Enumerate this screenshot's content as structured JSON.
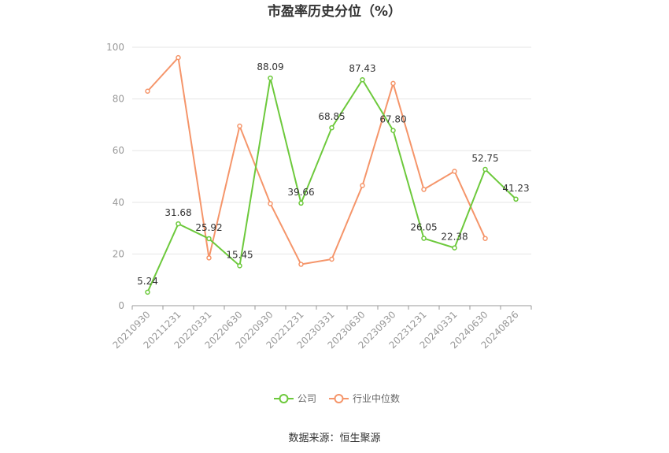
{
  "chart_data": {
    "type": "line",
    "title": "市盈率历史分位（%）",
    "categories": [
      "20210930",
      "20211231",
      "20220331",
      "20220630",
      "20220930",
      "20221231",
      "20230331",
      "20230630",
      "20230930",
      "20231231",
      "20240331",
      "20240630",
      "20240826"
    ],
    "ylim": [
      0,
      100
    ],
    "yticks": [
      0,
      20,
      40,
      60,
      80,
      100
    ],
    "grid": true,
    "legend_position": "bottom",
    "series": [
      {
        "name": "公司",
        "color": "#6dc93c",
        "values": [
          5.24,
          31.68,
          25.92,
          15.45,
          88.09,
          39.66,
          68.85,
          87.43,
          67.8,
          26.05,
          22.38,
          52.75,
          41.23
        ],
        "labels": [
          "5.24",
          "31.68",
          "25.92",
          "15.45",
          "88.09",
          "39.66",
          "68.85",
          "87.43",
          "67.80",
          "26.05",
          "22.38",
          "52.75",
          "41.23"
        ]
      },
      {
        "name": "行业中位数",
        "color": "#f5956a",
        "values": [
          83,
          96,
          18.5,
          69.5,
          39.5,
          16,
          18,
          46.5,
          86,
          45,
          52,
          26,
          null
        ]
      }
    ]
  },
  "source_text": "数据来源：恒生聚源"
}
